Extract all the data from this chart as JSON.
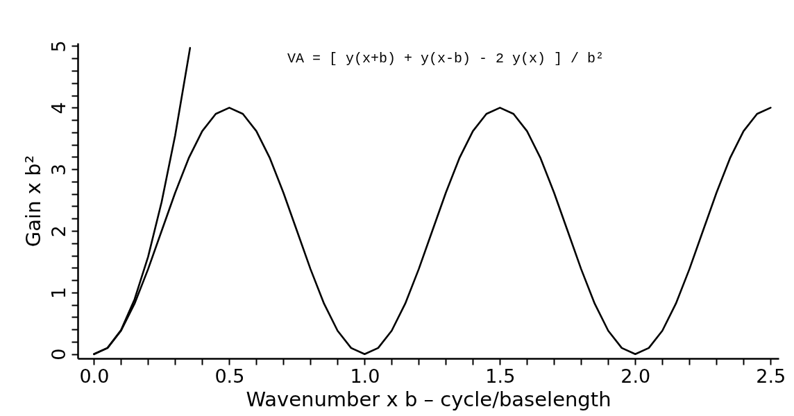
{
  "chart_data": {
    "type": "line",
    "xlabel": "Wavenumber x b – cycle/baselength",
    "ylabel": "Gain x b²",
    "annotations": [
      "VA = [ y(x+b) + y(x-b) - 2 y(x) ] / b²"
    ],
    "xlim": [
      -0.06,
      2.53
    ],
    "ylim": [
      -0.07,
      5.05
    ],
    "xticks": [
      {
        "value": 0,
        "label": "0.0"
      },
      {
        "value": 0.1,
        "label": null
      },
      {
        "value": 0.2,
        "label": null
      },
      {
        "value": 0.3,
        "label": null
      },
      {
        "value": 0.4,
        "label": null
      },
      0.5,
      {
        "value": 0.6,
        "label": null
      },
      {
        "value": 0.7,
        "label": null
      },
      {
        "value": 0.8,
        "label": null
      },
      {
        "value": 0.9,
        "label": null
      },
      {
        "value": 1,
        "label": "1.0"
      },
      {
        "value": 1.1,
        "label": null
      },
      {
        "value": 1.2,
        "label": null
      },
      {
        "value": 1.3,
        "label": null
      },
      {
        "value": 1.4,
        "label": null
      },
      1.5,
      {
        "value": 1.6,
        "label": null
      },
      {
        "value": 1.7,
        "label": null
      },
      {
        "value": 1.8,
        "label": null
      },
      {
        "value": 1.9,
        "label": null
      },
      {
        "value": 2,
        "label": "2.0"
      },
      {
        "value": 2.1,
        "label": null
      },
      {
        "value": 2.2,
        "label": null
      },
      {
        "value": 2.3,
        "label": null
      },
      {
        "value": 2.4,
        "label": null
      },
      2.5
    ],
    "yticks": [
      0,
      {
        "value": 0.2,
        "label": null
      },
      {
        "value": 0.4,
        "label": null
      },
      {
        "value": 0.6,
        "label": null
      },
      {
        "value": 0.8,
        "label": null
      },
      1,
      {
        "value": 1.2,
        "label": null
      },
      {
        "value": 1.4,
        "label": null
      },
      {
        "value": 1.6,
        "label": null
      },
      {
        "value": 1.8,
        "label": null
      },
      2,
      {
        "value": 2.2,
        "label": null
      },
      {
        "value": 2.4,
        "label": null
      },
      {
        "value": 2.6,
        "label": null
      },
      {
        "value": 2.8,
        "label": null
      },
      3,
      {
        "value": 3.2,
        "label": null
      },
      {
        "value": 3.4,
        "label": null
      },
      {
        "value": 3.6,
        "label": null
      },
      {
        "value": 3.8,
        "label": null
      },
      4,
      {
        "value": 4.2,
        "label": null
      },
      {
        "value": 4.4,
        "label": null
      },
      {
        "value": 4.6,
        "label": null
      },
      {
        "value": 4.8,
        "label": null
      },
      5
    ],
    "grid": false,
    "marker": "none",
    "line_style": "solid",
    "series": [
      {
        "color": "#000000",
        "x": [
          0,
          0.05,
          0.1,
          0.15,
          0.2,
          0.25,
          0.3,
          0.35,
          0.4,
          0.45,
          0.5,
          0.55,
          0.6,
          0.65,
          0.7,
          0.75,
          0.8,
          0.85,
          0.9,
          0.95,
          1,
          1.05,
          1.1,
          1.15,
          1.2,
          1.25,
          1.3,
          1.35,
          1.4,
          1.45,
          1.5,
          1.55,
          1.6,
          1.65,
          1.7,
          1.75,
          1.8,
          1.85,
          1.9,
          1.95,
          2,
          2.05,
          2.1,
          2.15,
          2.2,
          2.25,
          2.3,
          2.35,
          2.4,
          2.45,
          2.5
        ],
        "values": [
          0,
          0.1,
          0.38,
          0.82,
          1.38,
          2,
          2.62,
          3.18,
          3.62,
          3.9,
          4,
          3.9,
          3.62,
          3.18,
          2.62,
          2,
          1.38,
          0.82,
          0.38,
          0.1,
          0,
          0.1,
          0.38,
          0.82,
          1.38,
          2,
          2.62,
          3.18,
          3.62,
          3.9,
          4,
          3.9,
          3.62,
          3.18,
          2.62,
          2,
          1.38,
          0.82,
          0.38,
          0.1,
          0,
          0.1,
          0.38,
          0.82,
          1.38,
          2,
          2.62,
          3.18,
          3.62,
          3.9,
          4
        ]
      },
      {
        "color": "#000000",
        "x": [
          0,
          0.05,
          0.1,
          0.15,
          0.2,
          0.25,
          0.3,
          0.35,
          0.355
        ],
        "values": [
          0,
          0.1,
          0.39,
          0.89,
          1.58,
          2.47,
          3.55,
          4.84,
          4.97
        ]
      }
    ]
  }
}
